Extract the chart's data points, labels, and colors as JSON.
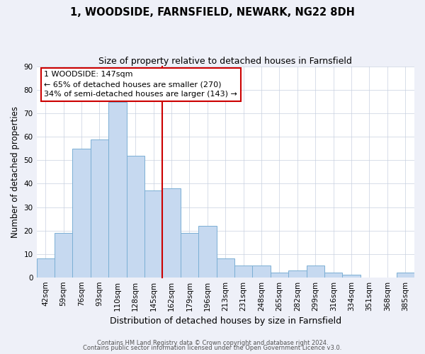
{
  "title": "1, WOODSIDE, FARNSFIELD, NEWARK, NG22 8DH",
  "subtitle": "Size of property relative to detached houses in Farnsfield",
  "xlabel": "Distribution of detached houses by size in Farnsfield",
  "ylabel": "Number of detached properties",
  "categories": [
    "42sqm",
    "59sqm",
    "76sqm",
    "93sqm",
    "110sqm",
    "128sqm",
    "145sqm",
    "162sqm",
    "179sqm",
    "196sqm",
    "213sqm",
    "231sqm",
    "248sqm",
    "265sqm",
    "282sqm",
    "299sqm",
    "316sqm",
    "334sqm",
    "351sqm",
    "368sqm",
    "385sqm"
  ],
  "values": [
    8,
    19,
    55,
    59,
    75,
    52,
    37,
    38,
    19,
    22,
    8,
    5,
    5,
    2,
    3,
    5,
    2,
    1,
    0,
    0,
    2
  ],
  "bar_color": "#c6d9f0",
  "bar_edge_color": "#7bafd4",
  "property_line_x": 7.5,
  "annotation_title": "1 WOODSIDE: 147sqm",
  "annotation_line1": "← 65% of detached houses are smaller (270)",
  "annotation_line2": "34% of semi-detached houses are larger (143) →",
  "annotation_box_color": "#ffffff",
  "annotation_border_color": "#cc0000",
  "ylim": [
    0,
    90
  ],
  "yticks": [
    0,
    10,
    20,
    30,
    40,
    50,
    60,
    70,
    80,
    90
  ],
  "background_color": "#eef0f8",
  "plot_background_color": "#ffffff",
  "grid_color": "#c8d0e0",
  "footer_line1": "Contains HM Land Registry data © Crown copyright and database right 2024.",
  "footer_line2": "Contains public sector information licensed under the Open Government Licence v3.0.",
  "title_fontsize": 10.5,
  "subtitle_fontsize": 9,
  "xlabel_fontsize": 9,
  "ylabel_fontsize": 8.5,
  "tick_fontsize": 7.5,
  "annotation_fontsize": 8,
  "footer_fontsize": 6
}
